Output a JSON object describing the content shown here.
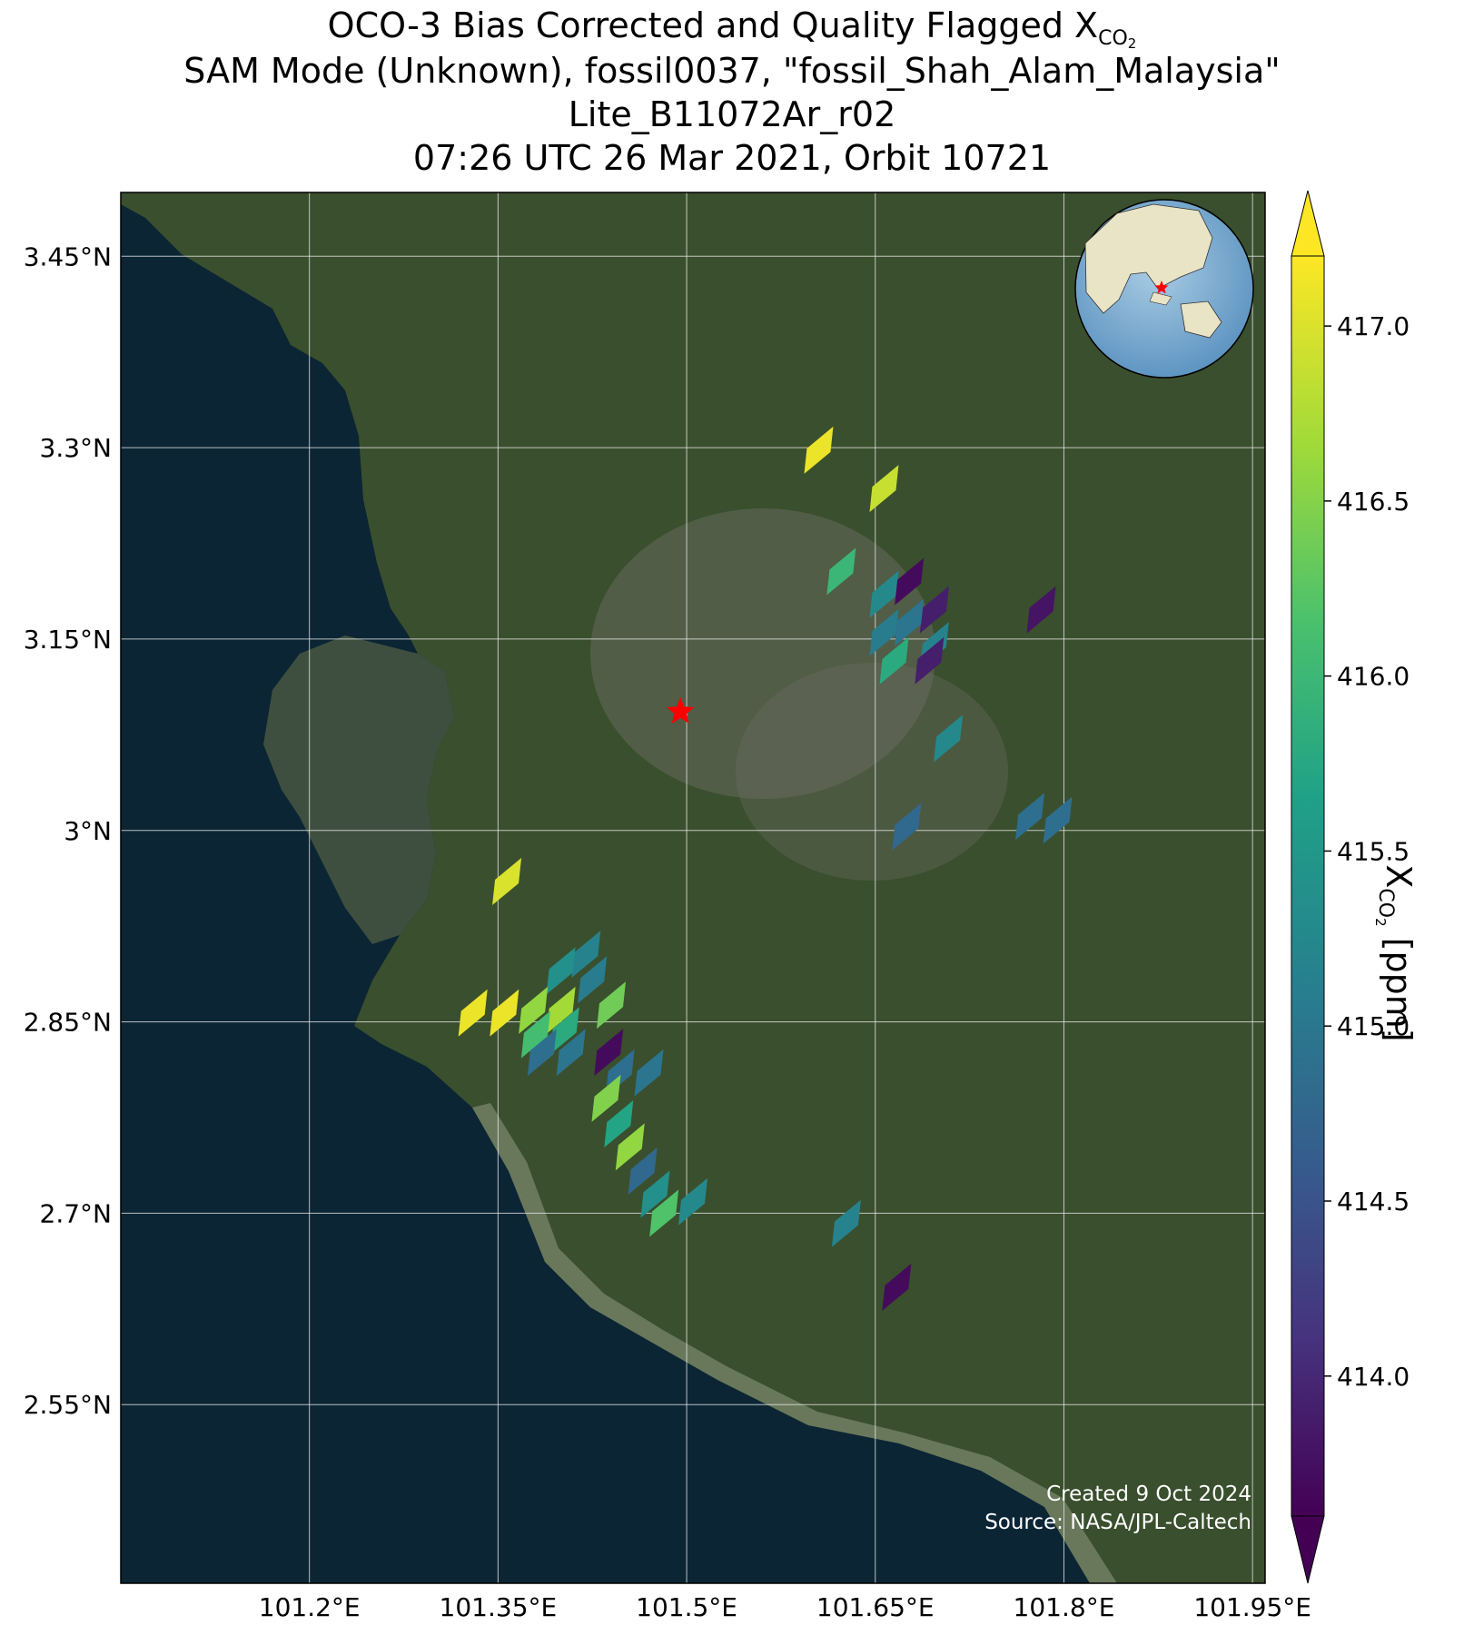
{
  "title": {
    "line1_main": "OCO-3 Bias Corrected and Quality Flagged X",
    "line1_sub": "CO",
    "line1_sub2": "2",
    "line2": "SAM Mode (Unknown), fossil0037, \"fossil_Shah_Alam_Malaysia\"",
    "line3": "Lite_B11072Ar_r02",
    "line4": "07:26 UTC 26 Mar 2021, Orbit 10721"
  },
  "map": {
    "lon_range": [
      101.05,
      101.96
    ],
    "lat_range": [
      2.41,
      3.5
    ],
    "lon_ticks": [
      101.2,
      101.35,
      101.5,
      101.65,
      101.8,
      101.95
    ],
    "lon_tick_labels": [
      "101.2°E",
      "101.35°E",
      "101.5°E",
      "101.65°E",
      "101.8°E",
      "101.95°E"
    ],
    "lat_ticks": [
      3.45,
      3.3,
      3.15,
      3.0,
      2.85,
      2.7,
      2.55
    ],
    "lat_tick_labels": [
      "3.45°N",
      "3.3°N",
      "3.15°N",
      "3°N",
      "2.85°N",
      "2.7°N",
      "2.55°N"
    ],
    "grid": true,
    "basemap": "satellite imagery",
    "target_marker": {
      "lon": 101.495,
      "lat": 3.093,
      "color": "#ff0000",
      "shape": "star"
    },
    "inset_globe": {
      "placement": "top-right",
      "marker": "red star over Malaysia"
    }
  },
  "chart_data": {
    "type": "scatter",
    "variable": "XCO2",
    "units": "ppm",
    "colormap": "viridis",
    "color_range": [
      413.6,
      417.2
    ],
    "soundings": [
      {
        "lon": 101.605,
        "lat": 3.298,
        "xco2": 417.1
      },
      {
        "lon": 101.657,
        "lat": 3.268,
        "xco2": 416.9
      },
      {
        "lon": 101.623,
        "lat": 3.203,
        "xco2": 416.0
      },
      {
        "lon": 101.657,
        "lat": 3.185,
        "xco2": 415.3
      },
      {
        "lon": 101.677,
        "lat": 3.195,
        "xco2": 413.7
      },
      {
        "lon": 101.697,
        "lat": 3.173,
        "xco2": 413.9
      },
      {
        "lon": 101.782,
        "lat": 3.173,
        "xco2": 413.8
      },
      {
        "lon": 101.657,
        "lat": 3.155,
        "xco2": 415.1
      },
      {
        "lon": 101.677,
        "lat": 3.163,
        "xco2": 415.0
      },
      {
        "lon": 101.697,
        "lat": 3.145,
        "xco2": 415.2
      },
      {
        "lon": 101.665,
        "lat": 3.133,
        "xco2": 415.8
      },
      {
        "lon": 101.693,
        "lat": 3.133,
        "xco2": 413.9
      },
      {
        "lon": 101.708,
        "lat": 3.072,
        "xco2": 415.3
      },
      {
        "lon": 101.675,
        "lat": 3.003,
        "xco2": 414.8
      },
      {
        "lon": 101.773,
        "lat": 3.011,
        "xco2": 414.9
      },
      {
        "lon": 101.795,
        "lat": 3.008,
        "xco2": 414.9
      },
      {
        "lon": 101.357,
        "lat": 2.96,
        "xco2": 417.0
      },
      {
        "lon": 101.42,
        "lat": 2.903,
        "xco2": 415.2
      },
      {
        "lon": 101.4,
        "lat": 2.89,
        "xco2": 415.4
      },
      {
        "lon": 101.425,
        "lat": 2.883,
        "xco2": 415.1
      },
      {
        "lon": 101.44,
        "lat": 2.863,
        "xco2": 416.4
      },
      {
        "lon": 101.33,
        "lat": 2.857,
        "xco2": 417.1
      },
      {
        "lon": 101.355,
        "lat": 2.857,
        "xco2": 417.1
      },
      {
        "lon": 101.378,
        "lat": 2.859,
        "xco2": 416.6
      },
      {
        "lon": 101.4,
        "lat": 2.859,
        "xco2": 416.7
      },
      {
        "lon": 101.403,
        "lat": 2.843,
        "xco2": 415.8
      },
      {
        "lon": 101.38,
        "lat": 2.84,
        "xco2": 416.1
      },
      {
        "lon": 101.385,
        "lat": 2.826,
        "xco2": 414.9
      },
      {
        "lon": 101.408,
        "lat": 2.826,
        "xco2": 415.0
      },
      {
        "lon": 101.438,
        "lat": 2.826,
        "xco2": 413.7
      },
      {
        "lon": 101.447,
        "lat": 2.81,
        "xco2": 414.9
      },
      {
        "lon": 101.47,
        "lat": 2.81,
        "xco2": 415.0
      },
      {
        "lon": 101.436,
        "lat": 2.79,
        "xco2": 416.5
      },
      {
        "lon": 101.446,
        "lat": 2.77,
        "xco2": 415.7
      },
      {
        "lon": 101.455,
        "lat": 2.752,
        "xco2": 416.6
      },
      {
        "lon": 101.465,
        "lat": 2.733,
        "xco2": 414.8
      },
      {
        "lon": 101.475,
        "lat": 2.715,
        "xco2": 415.4
      },
      {
        "lon": 101.482,
        "lat": 2.7,
        "xco2": 416.2
      },
      {
        "lon": 101.505,
        "lat": 2.709,
        "xco2": 415.3
      },
      {
        "lon": 101.627,
        "lat": 2.692,
        "xco2": 415.2
      },
      {
        "lon": 101.667,
        "lat": 2.642,
        "xco2": 413.7
      }
    ],
    "colorbar": {
      "ticks": [
        414.0,
        414.5,
        415.0,
        415.5,
        416.0,
        416.5,
        417.0
      ],
      "tick_labels": [
        "414.0",
        "414.5",
        "415.0",
        "415.5",
        "416.0",
        "416.5",
        "417.0"
      ],
      "label_main": "X",
      "label_sub": "CO",
      "label_sub2": "2",
      "label_units": " [ppm]",
      "extend": "both"
    }
  },
  "credit": {
    "line1": "Created 9 Oct 2024",
    "line2": "Source: NASA/JPL-Caltech"
  },
  "colors": {
    "sea": "#0b2535",
    "land": "#3d5230",
    "shallow": "#8f9a82",
    "grid": "#e6e6e6",
    "marker": "#ff0000"
  }
}
